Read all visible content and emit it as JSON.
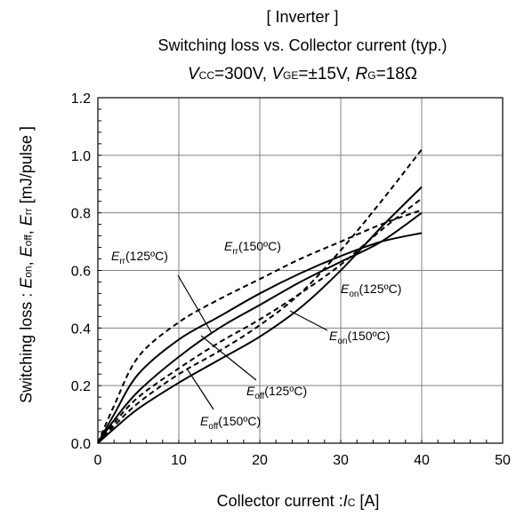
{
  "chart_data": {
    "type": "line",
    "title": "[ Inverter ]",
    "subtitle": "Switching loss  vs.  Collector current  (typ.)",
    "conditions": {
      "vcc_var": "V",
      "vcc_sub": "CC",
      "vcc_val": "=300V, ",
      "vge_var": "V",
      "vge_sub": "GE",
      "vge_val": "=±15V, ",
      "rg_var": "R",
      "rg_sub": "G",
      "rg_val": "=18Ω"
    },
    "xlabel": {
      "prefix": "Collector  current :",
      "var": "I",
      "sub": "C",
      "unit": " [A]"
    },
    "ylabel": {
      "prefix": "Switching loss  : ",
      "v1": "E",
      "s1": "on",
      "sep1": ", ",
      "v2": "E",
      "s2": "off",
      "sep2": ", ",
      "v3": "E",
      "s3": "rr",
      "unit": "  [mJ/pulse ]"
    },
    "xlim": [
      0,
      50
    ],
    "ylim": [
      0,
      1.2
    ],
    "xticks": [
      "0",
      "10",
      "20",
      "30",
      "40",
      "50"
    ],
    "yticks": [
      "0.0",
      "0.2",
      "0.4",
      "0.6",
      "0.8",
      "1.0",
      "1.2"
    ],
    "grid": true,
    "series": [
      {
        "var": "E",
        "sub": "on",
        "cond": "(125ºC)",
        "style": "solid",
        "x": [
          0,
          2,
          5,
          10,
          15,
          20,
          25,
          30,
          35,
          40
        ],
        "y": [
          0,
          0.08,
          0.18,
          0.3,
          0.4,
          0.48,
          0.56,
          0.63,
          0.7,
          0.8
        ]
      },
      {
        "var": "E",
        "sub": "on",
        "cond": "(150ºC)",
        "style": "dashed",
        "x": [
          0,
          2,
          5,
          10,
          15,
          20,
          25,
          30,
          35,
          40
        ],
        "y": [
          0,
          0.07,
          0.16,
          0.26,
          0.35,
          0.43,
          0.52,
          0.62,
          0.74,
          0.85
        ]
      },
      {
        "var": "E",
        "sub": "off",
        "cond": "(125ºC)",
        "style": "solid",
        "x": [
          0,
          2,
          5,
          10,
          15,
          20,
          25,
          30,
          35,
          40
        ],
        "y": [
          0,
          0.05,
          0.12,
          0.21,
          0.29,
          0.37,
          0.47,
          0.6,
          0.75,
          0.89
        ]
      },
      {
        "var": "E",
        "sub": "off",
        "cond": "(150ºC)",
        "style": "dashed",
        "x": [
          0,
          2,
          5,
          10,
          15,
          20,
          25,
          30,
          35,
          40
        ],
        "y": [
          0,
          0.06,
          0.14,
          0.24,
          0.32,
          0.41,
          0.52,
          0.67,
          0.84,
          1.02
        ]
      },
      {
        "var": "E",
        "sub": "rr",
        "cond": "(125ºC)",
        "style": "solid",
        "x": [
          0,
          2,
          5,
          10,
          15,
          20,
          25,
          30,
          35,
          40
        ],
        "y": [
          0,
          0.1,
          0.24,
          0.36,
          0.44,
          0.52,
          0.59,
          0.65,
          0.7,
          0.73
        ]
      },
      {
        "var": "E",
        "sub": "rr",
        "cond": "(150ºC)",
        "style": "dashed",
        "x": [
          0,
          2,
          5,
          10,
          15,
          20,
          25,
          30,
          35,
          40
        ],
        "y": [
          0,
          0.13,
          0.3,
          0.42,
          0.5,
          0.57,
          0.64,
          0.7,
          0.76,
          0.81
        ]
      }
    ]
  }
}
